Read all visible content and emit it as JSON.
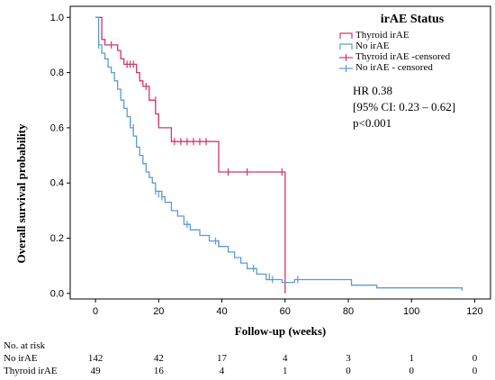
{
  "chart_data": {
    "type": "line",
    "title": "",
    "xlabel": "Follow-up (weeks)",
    "ylabel": "Overall survival probability",
    "xlim": [
      -8,
      125
    ],
    "ylim": [
      -0.02,
      1.04
    ],
    "xticks": [
      0,
      20,
      40,
      60,
      80,
      100,
      120
    ],
    "yticks": [
      0.0,
      0.2,
      0.4,
      0.6,
      0.8,
      1.0
    ],
    "grid": false,
    "legend_title": "irAE Status",
    "legend_placement": "top-right",
    "legend": [
      {
        "label": "Thyroid irAE",
        "kind": "line",
        "color": "#d6336c"
      },
      {
        "label": "No irAE",
        "kind": "line",
        "color": "#5b9bd5"
      },
      {
        "label": "Thyroid irAE -censored",
        "kind": "censor",
        "color": "#d6336c"
      },
      {
        "label": "No irAE - censored",
        "kind": "censor",
        "color": "#5b9bd5"
      }
    ],
    "series": [
      {
        "name": "Thyroid irAE",
        "color": "#d6336c",
        "steps": [
          [
            0,
            1.0
          ],
          [
            2,
            1.0
          ],
          [
            2,
            0.92
          ],
          [
            3,
            0.92
          ],
          [
            3,
            0.9
          ],
          [
            7,
            0.9
          ],
          [
            7,
            0.88
          ],
          [
            8,
            0.88
          ],
          [
            8,
            0.85
          ],
          [
            9,
            0.85
          ],
          [
            9,
            0.83
          ],
          [
            13,
            0.83
          ],
          [
            13,
            0.8
          ],
          [
            14,
            0.8
          ],
          [
            14,
            0.77
          ],
          [
            15,
            0.77
          ],
          [
            15,
            0.75
          ],
          [
            17,
            0.75
          ],
          [
            17,
            0.7
          ],
          [
            19,
            0.7
          ],
          [
            19,
            0.65
          ],
          [
            20,
            0.65
          ],
          [
            20,
            0.6
          ],
          [
            24,
            0.6
          ],
          [
            24,
            0.55
          ],
          [
            39,
            0.55
          ],
          [
            39,
            0.44
          ],
          [
            60,
            0.44
          ],
          [
            60,
            0.0
          ]
        ],
        "censored": [
          [
            5,
            0.9
          ],
          [
            10,
            0.83
          ],
          [
            11,
            0.83
          ],
          [
            12,
            0.83
          ],
          [
            16,
            0.75
          ],
          [
            19,
            0.7
          ],
          [
            20,
            0.63
          ],
          [
            25,
            0.55
          ],
          [
            27,
            0.55
          ],
          [
            29,
            0.55
          ],
          [
            31,
            0.55
          ],
          [
            33,
            0.55
          ],
          [
            35,
            0.55
          ],
          [
            42,
            0.44
          ],
          [
            48,
            0.44
          ],
          [
            59,
            0.44
          ]
        ]
      },
      {
        "name": "No irAE",
        "color": "#5b9bd5",
        "steps": [
          [
            0,
            1.0
          ],
          [
            1,
            1.0
          ],
          [
            1,
            0.9
          ],
          [
            2,
            0.9
          ],
          [
            2,
            0.87
          ],
          [
            3,
            0.87
          ],
          [
            3,
            0.85
          ],
          [
            4,
            0.85
          ],
          [
            4,
            0.82
          ],
          [
            5,
            0.82
          ],
          [
            5,
            0.8
          ],
          [
            6,
            0.8
          ],
          [
            6,
            0.77
          ],
          [
            7,
            0.77
          ],
          [
            7,
            0.74
          ],
          [
            8,
            0.74
          ],
          [
            8,
            0.7
          ],
          [
            9,
            0.7
          ],
          [
            9,
            0.67
          ],
          [
            10,
            0.67
          ],
          [
            10,
            0.64
          ],
          [
            11,
            0.64
          ],
          [
            11,
            0.6
          ],
          [
            12,
            0.6
          ],
          [
            12,
            0.57
          ],
          [
            13,
            0.57
          ],
          [
            13,
            0.53
          ],
          [
            14,
            0.53
          ],
          [
            14,
            0.5
          ],
          [
            15,
            0.5
          ],
          [
            15,
            0.47
          ],
          [
            16,
            0.47
          ],
          [
            16,
            0.44
          ],
          [
            17,
            0.44
          ],
          [
            17,
            0.42
          ],
          [
            18,
            0.42
          ],
          [
            18,
            0.4
          ],
          [
            19,
            0.4
          ],
          [
            19,
            0.37
          ],
          [
            21,
            0.37
          ],
          [
            21,
            0.35
          ],
          [
            22,
            0.35
          ],
          [
            22,
            0.33
          ],
          [
            24,
            0.33
          ],
          [
            24,
            0.3
          ],
          [
            26,
            0.3
          ],
          [
            26,
            0.28
          ],
          [
            28,
            0.28
          ],
          [
            28,
            0.25
          ],
          [
            30,
            0.25
          ],
          [
            30,
            0.23
          ],
          [
            33,
            0.23
          ],
          [
            33,
            0.21
          ],
          [
            36,
            0.21
          ],
          [
            36,
            0.19
          ],
          [
            39,
            0.19
          ],
          [
            39,
            0.17
          ],
          [
            42,
            0.17
          ],
          [
            42,
            0.15
          ],
          [
            44,
            0.15
          ],
          [
            44,
            0.13
          ],
          [
            46,
            0.13
          ],
          [
            46,
            0.11
          ],
          [
            48,
            0.11
          ],
          [
            48,
            0.09
          ],
          [
            51,
            0.09
          ],
          [
            51,
            0.07
          ],
          [
            54,
            0.07
          ],
          [
            54,
            0.05
          ],
          [
            59,
            0.05
          ],
          [
            59,
            0.04
          ],
          [
            63,
            0.04
          ],
          [
            63,
            0.05
          ],
          [
            81,
            0.05
          ],
          [
            81,
            0.03
          ],
          [
            89,
            0.03
          ],
          [
            89,
            0.02
          ],
          [
            116,
            0.02
          ],
          [
            116,
            0.01
          ]
        ],
        "censored": [
          [
            1,
            0.9
          ],
          [
            11,
            0.62
          ],
          [
            12,
            0.6
          ],
          [
            19,
            0.37
          ],
          [
            20,
            0.36
          ],
          [
            21,
            0.35
          ],
          [
            29,
            0.25
          ],
          [
            38,
            0.19
          ],
          [
            39,
            0.18
          ],
          [
            50,
            0.09
          ],
          [
            55,
            0.06
          ],
          [
            56,
            0.05
          ],
          [
            64,
            0.05
          ]
        ]
      }
    ],
    "annotation": [
      "HR 0.38",
      "[95% CI: 0.23 – 0.62]",
      "p<0.001"
    ],
    "risk_table": {
      "title": "No. at risk",
      "rows": [
        {
          "label": "No irAE",
          "values": [
            "142",
            "42",
            "17",
            "4",
            "3",
            "1",
            "0"
          ]
        },
        {
          "label": "Thyroid irAE",
          "values": [
            "49",
            "16",
            "4",
            "1",
            "0",
            "0",
            "0"
          ]
        }
      ]
    }
  }
}
